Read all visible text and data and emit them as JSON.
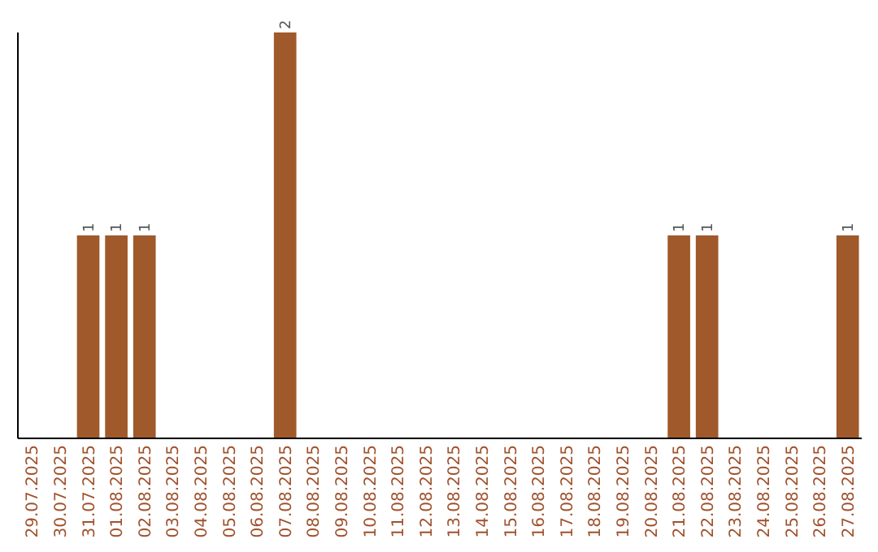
{
  "chart_data": {
    "type": "bar",
    "categories": [
      "29.07.2025",
      "30.07.2025",
      "31.07.2025",
      "01.08.2025",
      "02.08.2025",
      "03.08.2025",
      "04.08.2025",
      "05.08.2025",
      "06.08.2025",
      "07.08.2025",
      "08.08.2025",
      "09.08.2025",
      "10.08.2025",
      "11.08.2025",
      "12.08.2025",
      "13.08.2025",
      "14.08.2025",
      "15.08.2025",
      "16.08.2025",
      "17.08.2025",
      "18.08.2025",
      "19.08.2025",
      "20.08.2025",
      "21.08.2025",
      "22.08.2025",
      "23.08.2025",
      "24.08.2025",
      "25.08.2025",
      "26.08.2025",
      "27.08.2025"
    ],
    "values": [
      0,
      0,
      1,
      1,
      1,
      0,
      0,
      0,
      0,
      2,
      0,
      0,
      0,
      0,
      0,
      0,
      0,
      0,
      0,
      0,
      0,
      0,
      0,
      1,
      1,
      0,
      0,
      0,
      0,
      1
    ],
    "value_labels": [
      null,
      null,
      "1",
      "1",
      "1",
      null,
      null,
      null,
      null,
      "2",
      null,
      null,
      null,
      null,
      null,
      null,
      null,
      null,
      null,
      null,
      null,
      null,
      null,
      "1",
      "1",
      null,
      null,
      null,
      null,
      "1"
    ],
    "color": "#a0592a",
    "ylim": [
      0,
      2
    ],
    "tick_labels": "x",
    "grid": false
  }
}
